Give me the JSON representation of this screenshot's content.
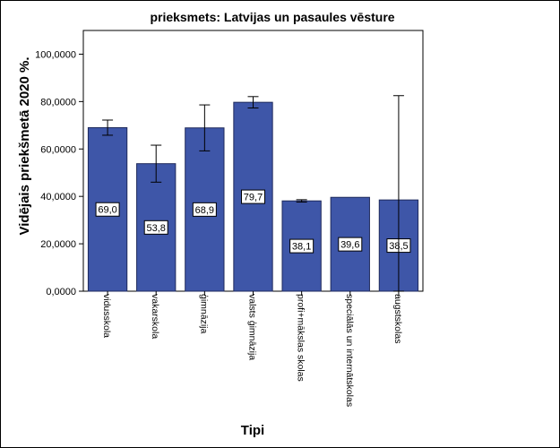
{
  "chart_data": {
    "type": "bar",
    "title": "prieksmets: Latvijas un pasaules vēsture",
    "xlabel": "Tipi",
    "ylabel": "Vidējais priekšmetā 2020 %.",
    "ylim": [
      0,
      110
    ],
    "yticks": [
      "0,0000",
      "20,0000",
      "40,0000",
      "60,0000",
      "80,0000",
      "100,0000"
    ],
    "ytick_values": [
      0,
      20,
      40,
      60,
      80,
      100
    ],
    "categories": [
      "vidusskola",
      "vakarskola",
      "ģimnāzija",
      "valsts ģimnāzija",
      "profi+mākslas skolas",
      "speciālās un internātskolas",
      "augstskolas"
    ],
    "values": [
      69.0,
      53.8,
      68.9,
      79.7,
      38.1,
      39.6,
      38.5
    ],
    "data_labels": [
      "69,0",
      "53,8",
      "68,9",
      "79,7",
      "38,1",
      "39,6",
      "38,5"
    ],
    "error_low": [
      65.8,
      46.0,
      59.2,
      77.3,
      37.6,
      null,
      0
    ],
    "error_high": [
      72.2,
      61.6,
      78.6,
      82.1,
      38.6,
      null,
      82.5
    ],
    "grid": false,
    "legend": "none",
    "colors": {
      "bar_fill": "#3e56a8",
      "bar_stroke": "#1f2a5c",
      "plot_border": "#000000"
    }
  }
}
